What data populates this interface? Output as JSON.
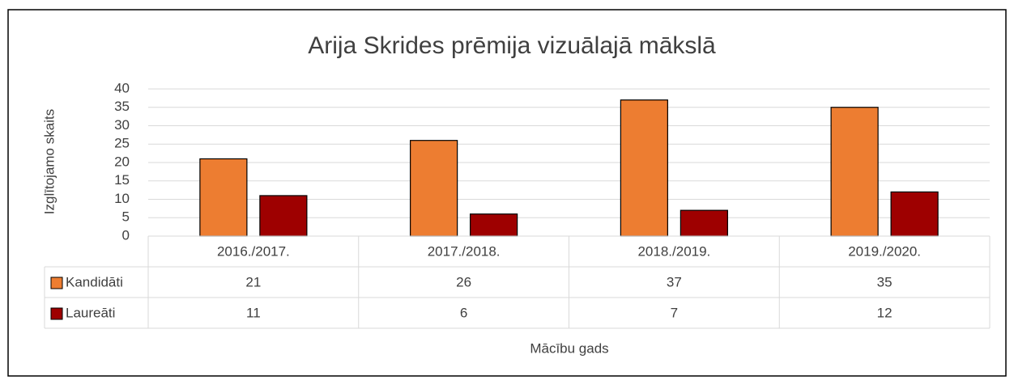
{
  "chart_data": {
    "type": "bar",
    "title": "Arija Skrides prēmija vizuālajā mākslā",
    "x_label": "Mācību gads",
    "y_label": "Izglītojamo skaits",
    "categories": [
      "2016./2017.",
      "2017./2018.",
      "2018./2019.",
      "2019./2020."
    ],
    "series": [
      {
        "name": "Kandidāti",
        "color": "#ed7d31",
        "values": [
          21,
          26,
          37,
          35
        ]
      },
      {
        "name": "Laureāti",
        "color": "#9e0000",
        "values": [
          11,
          6,
          7,
          12
        ]
      }
    ],
    "ylim": [
      0,
      40
    ],
    "yticks": [
      0,
      5,
      10,
      15,
      20,
      25,
      30,
      35,
      40
    ],
    "grid": true,
    "data_table": true
  }
}
